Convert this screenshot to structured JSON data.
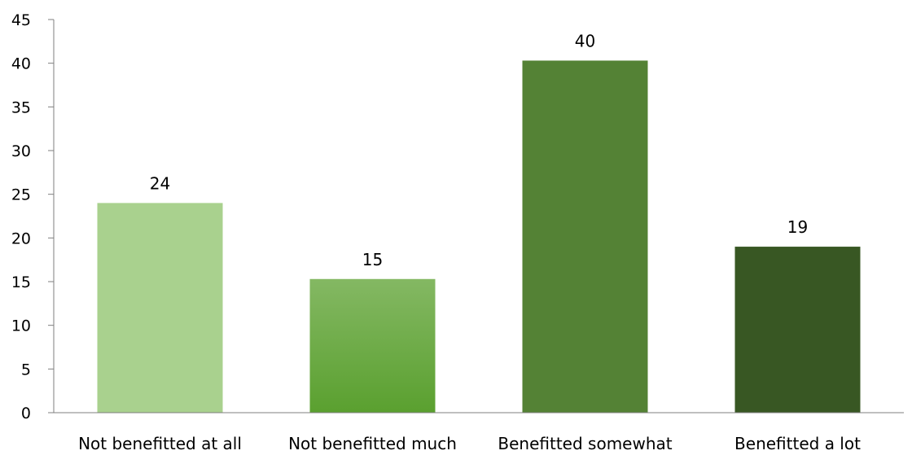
{
  "chart_data": {
    "type": "bar",
    "title": "",
    "xlabel": "",
    "ylabel": "",
    "categories": [
      "Not benefitted at all",
      "Not benefitted much",
      "Benefitted somewhat",
      "Benefitted a lot"
    ],
    "values": [
      24,
      15.3,
      40.3,
      19
    ],
    "data_labels": [
      "24",
      "15",
      "40",
      "19"
    ],
    "ylim": [
      0,
      45
    ],
    "yticks": [
      0,
      5,
      10,
      15,
      20,
      25,
      30,
      35,
      40,
      45
    ],
    "grid": false,
    "legend": "none",
    "colors": [
      "#a9d18e",
      "#6aac3f",
      "#548235",
      "#385723"
    ],
    "axis_color": "#7f7f7f"
  }
}
